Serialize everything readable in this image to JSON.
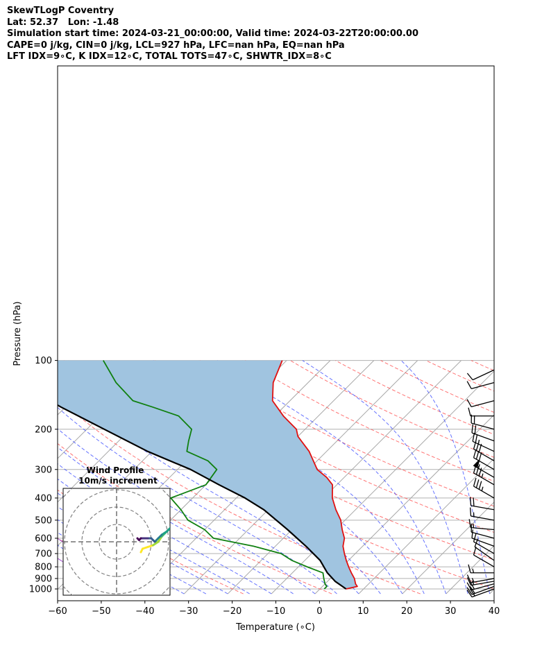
{
  "header": {
    "line1": "SkewTLogP Coventry",
    "line2": "Lat: 52.37   Lon: -1.48",
    "line3": "Simulation start time: 2024-03-21_00:00:00, Valid time: 2024-03-22T20:00:00.00",
    "line4": "CAPE=0 j/kg, CIN=0 j/kg, LCL=927 hPa, LFC=nan hPa, EQ=nan hPa",
    "line5": "LFT IDX=9∘C, K IDX=12∘C, TOTAL TOTS=47∘C, SHWTR_IDX=8∘C"
  },
  "chart_data": {
    "type": "line",
    "xlabel": "Temperature (∘C)",
    "ylabel": "Pressure (hPa)",
    "xlim": [
      -60,
      40
    ],
    "ylim": [
      1050,
      100
    ],
    "yscale": "log",
    "skew": true,
    "grid": true,
    "x_ticks": [
      "−60",
      "−50",
      "−40",
      "−30",
      "−20",
      "−10",
      "0",
      "10",
      "20",
      "30",
      "40"
    ],
    "y_ticks": [
      "100",
      "200",
      "300",
      "400",
      "500",
      "600",
      "700",
      "800",
      "900",
      "1000"
    ],
    "series": [
      {
        "role": "temperature",
        "color": "#e01010",
        "points": [
          [
            6,
            1000
          ],
          [
            8,
            975
          ],
          [
            7,
            950
          ],
          [
            5.5,
            900
          ],
          [
            3.5,
            850
          ],
          [
            1.5,
            800
          ],
          [
            -0.5,
            750
          ],
          [
            -2.5,
            700
          ],
          [
            -4.5,
            650
          ],
          [
            -6,
            600
          ],
          [
            -8.5,
            550
          ],
          [
            -11,
            500
          ],
          [
            -14.5,
            450
          ],
          [
            -18,
            400
          ],
          [
            -21,
            350
          ],
          [
            -24,
            325
          ],
          [
            -28,
            300
          ],
          [
            -34,
            250
          ],
          [
            -40,
            215
          ],
          [
            -42,
            200
          ],
          [
            -48,
            175
          ],
          [
            -54,
            150
          ],
          [
            -58,
            125
          ],
          [
            -61,
            100
          ]
        ]
      },
      {
        "role": "dewpoint",
        "color": "#108010",
        "points": [
          [
            1,
            1000
          ],
          [
            1,
            975
          ],
          [
            0,
            950
          ],
          [
            -1.5,
            900
          ],
          [
            -3,
            850
          ],
          [
            -8,
            800
          ],
          [
            -13,
            750
          ],
          [
            -17,
            700
          ],
          [
            -25,
            650
          ],
          [
            -36,
            600
          ],
          [
            -40,
            550
          ],
          [
            -46,
            500
          ],
          [
            -50,
            450
          ],
          [
            -55,
            400
          ],
          [
            -50,
            350
          ],
          [
            -51,
            300
          ],
          [
            -55,
            275
          ],
          [
            -62,
            250
          ],
          [
            -64,
            225
          ],
          [
            -66,
            200
          ],
          [
            -72,
            175
          ],
          [
            -80,
            160
          ],
          [
            -86,
            150
          ],
          [
            -94,
            125
          ],
          [
            -102,
            100
          ]
        ]
      },
      {
        "role": "parcel",
        "color": "#000000",
        "points": [
          [
            6,
            1000
          ],
          [
            1.8,
            927
          ],
          [
            -2,
            850
          ],
          [
            -6.5,
            750
          ],
          [
            -13,
            650
          ],
          [
            -21,
            550
          ],
          [
            -31,
            450
          ],
          [
            -38,
            400
          ],
          [
            -47,
            350
          ],
          [
            -57,
            300
          ],
          [
            -71,
            250
          ],
          [
            -86,
            200
          ],
          [
            -101,
            160
          ],
          [
            -114,
            130
          ],
          [
            -126,
            100
          ]
        ]
      }
    ],
    "shading": {
      "between": [
        "temperature",
        "parcel"
      ],
      "color": "#a0c4e0"
    },
    "wind_barbs": [
      {
        "p": 1000,
        "speed": 20,
        "dir": 250
      },
      {
        "p": 975,
        "speed": 20,
        "dir": 250
      },
      {
        "p": 950,
        "speed": 20,
        "dir": 255
      },
      {
        "p": 925,
        "speed": 15,
        "dir": 260
      },
      {
        "p": 900,
        "speed": 15,
        "dir": 260
      },
      {
        "p": 850,
        "speed": 15,
        "dir": 270
      },
      {
        "p": 800,
        "speed": 10,
        "dir": 300
      },
      {
        "p": 750,
        "speed": 10,
        "dir": 305
      },
      {
        "p": 700,
        "speed": 10,
        "dir": 300
      },
      {
        "p": 650,
        "speed": 10,
        "dir": 290
      },
      {
        "p": 600,
        "speed": 10,
        "dir": 285
      },
      {
        "p": 550,
        "speed": 15,
        "dir": 275
      },
      {
        "p": 500,
        "speed": 15,
        "dir": 280
      },
      {
        "p": 450,
        "speed": 20,
        "dir": 280
      },
      {
        "p": 400,
        "speed": 35,
        "dir": 300
      },
      {
        "p": 350,
        "speed": 35,
        "dir": 300
      },
      {
        "p": 325,
        "speed": 55,
        "dir": 300
      },
      {
        "p": 300,
        "speed": 30,
        "dir": 300
      },
      {
        "p": 275,
        "speed": 30,
        "dir": 300
      },
      {
        "p": 250,
        "speed": 25,
        "dir": 295
      },
      {
        "p": 225,
        "speed": 20,
        "dir": 290
      },
      {
        "p": 200,
        "speed": 20,
        "dir": 285
      },
      {
        "p": 175,
        "speed": 10,
        "dir": 270
      },
      {
        "p": 150,
        "speed": 10,
        "dir": 255
      },
      {
        "p": 125,
        "speed": 10,
        "dir": 255
      },
      {
        "p": 110,
        "speed": 10,
        "dir": 245
      }
    ],
    "hodograph": {
      "title": "Wind Profile",
      "subtitle": "10m/s increment",
      "ring_increment": 10,
      "rings": 3,
      "colormap": [
        "#fde725",
        "#a0da39",
        "#4ac16d",
        "#1fa187",
        "#277f8e",
        "#365c8d",
        "#46327e",
        "#440154"
      ],
      "points": [
        [
          -2,
          -6
        ],
        [
          -1,
          -4
        ],
        [
          2,
          -3
        ],
        [
          5,
          -2
        ],
        [
          8,
          0
        ],
        [
          10,
          3
        ],
        [
          13,
          6
        ],
        [
          15,
          8
        ],
        [
          16,
          9
        ],
        [
          13,
          6
        ],
        [
          10,
          4
        ],
        [
          8,
          2
        ],
        [
          6,
          0
        ],
        [
          5,
          1
        ],
        [
          4,
          2
        ],
        [
          2,
          2
        ],
        [
          0,
          2
        ],
        [
          -2,
          2
        ],
        [
          -3,
          1
        ],
        [
          -4,
          2
        ]
      ]
    }
  }
}
